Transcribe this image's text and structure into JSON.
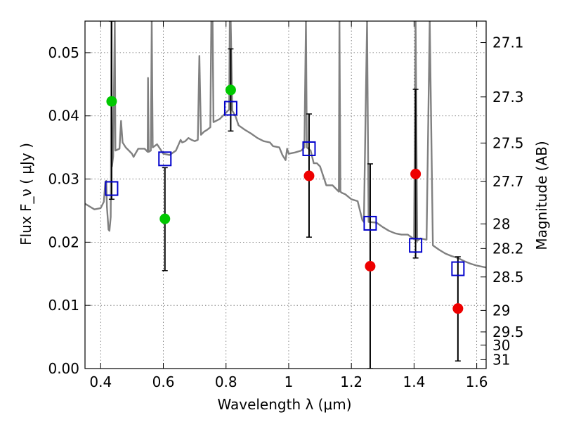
{
  "chart_data": {
    "type": "scatter",
    "xlabel": "Wavelength  λ (μm)",
    "ylabel": "Flux  F_ν  ( μJy )",
    "ylabel_right": "Magnitude (AB)",
    "xlim": [
      0.35,
      1.63
    ],
    "ylim": [
      0.0,
      0.055
    ],
    "grid": true,
    "x_ticks": [
      {
        "value": 0.4,
        "label": "0.4"
      },
      {
        "value": 0.6,
        "label": "0.6"
      },
      {
        "value": 0.8,
        "label": "0.8"
      },
      {
        "value": 1.0,
        "label": "1"
      },
      {
        "value": 1.2,
        "label": "1.2"
      },
      {
        "value": 1.4,
        "label": "1.4"
      },
      {
        "value": 1.6,
        "label": "1.6"
      }
    ],
    "y_ticks": [
      {
        "value": 0.0,
        "label": "0.00"
      },
      {
        "value": 0.01,
        "label": "0.01"
      },
      {
        "value": 0.02,
        "label": "0.02"
      },
      {
        "value": 0.03,
        "label": "0.03"
      },
      {
        "value": 0.04,
        "label": "0.04"
      },
      {
        "value": 0.05,
        "label": "0.05"
      }
    ],
    "y_ticks_right": [
      {
        "flux": 0.0516,
        "label": "27.1"
      },
      {
        "flux": 0.043,
        "label": "27.3"
      },
      {
        "flux": 0.0357,
        "label": "27.5"
      },
      {
        "flux": 0.0296,
        "label": "27.7"
      },
      {
        "flux": 0.0229,
        "label": "28"
      },
      {
        "flux": 0.019,
        "label": "28.2"
      },
      {
        "flux": 0.0145,
        "label": "28.5"
      },
      {
        "flux": 0.0092,
        "label": "29"
      },
      {
        "flux": 0.0058,
        "label": "29.5"
      },
      {
        "flux": 0.0037,
        "label": "30"
      },
      {
        "flux": 0.0014,
        "label": "31"
      }
    ],
    "model_spectrum": {
      "color": "#808080",
      "points": [
        [
          0.35,
          0.0261
        ],
        [
          0.38,
          0.0252
        ],
        [
          0.4,
          0.0254
        ],
        [
          0.41,
          0.0264
        ],
        [
          0.415,
          0.0296
        ],
        [
          0.418,
          0.0297
        ],
        [
          0.42,
          0.0256
        ],
        [
          0.425,
          0.022
        ],
        [
          0.428,
          0.0218
        ],
        [
          0.432,
          0.024
        ],
        [
          0.433,
          0.031
        ],
        [
          0.434,
          0.055
        ],
        [
          0.436,
          0.032
        ],
        [
          0.44,
          0.0336
        ],
        [
          0.445,
          0.055
        ],
        [
          0.447,
          0.0345
        ],
        [
          0.46,
          0.0348
        ],
        [
          0.465,
          0.0392
        ],
        [
          0.47,
          0.0358
        ],
        [
          0.48,
          0.035
        ],
        [
          0.49,
          0.0345
        ],
        [
          0.5,
          0.034
        ],
        [
          0.505,
          0.0335
        ],
        [
          0.52,
          0.0348
        ],
        [
          0.54,
          0.0348
        ],
        [
          0.55,
          0.0343
        ],
        [
          0.551,
          0.046
        ],
        [
          0.553,
          0.0343
        ],
        [
          0.56,
          0.0345
        ],
        [
          0.563,
          0.055
        ],
        [
          0.566,
          0.035
        ],
        [
          0.58,
          0.0355
        ],
        [
          0.6,
          0.034
        ],
        [
          0.62,
          0.0338
        ],
        [
          0.64,
          0.0345
        ],
        [
          0.655,
          0.0362
        ],
        [
          0.66,
          0.0358
        ],
        [
          0.67,
          0.036
        ],
        [
          0.68,
          0.0365
        ],
        [
          0.69,
          0.0362
        ],
        [
          0.7,
          0.036
        ],
        [
          0.71,
          0.0362
        ],
        [
          0.715,
          0.0495
        ],
        [
          0.72,
          0.037
        ],
        [
          0.73,
          0.0375
        ],
        [
          0.74,
          0.0378
        ],
        [
          0.75,
          0.0382
        ],
        [
          0.753,
          0.055
        ],
        [
          0.757,
          0.055
        ],
        [
          0.76,
          0.039
        ],
        [
          0.78,
          0.0395
        ],
        [
          0.79,
          0.04
        ],
        [
          0.8,
          0.0405
        ],
        [
          0.81,
          0.041
        ],
        [
          0.812,
          0.055
        ],
        [
          0.815,
          0.055
        ],
        [
          0.82,
          0.0408
        ],
        [
          0.83,
          0.04
        ],
        [
          0.84,
          0.0385
        ],
        [
          0.86,
          0.0378
        ],
        [
          0.88,
          0.0372
        ],
        [
          0.9,
          0.0365
        ],
        [
          0.92,
          0.036
        ],
        [
          0.94,
          0.0358
        ],
        [
          0.95,
          0.0352
        ],
        [
          0.97,
          0.035
        ],
        [
          0.98,
          0.0338
        ],
        [
          0.99,
          0.033
        ],
        [
          0.995,
          0.0348
        ],
        [
          1.0,
          0.034
        ],
        [
          1.02,
          0.0342
        ],
        [
          1.04,
          0.0345
        ],
        [
          1.05,
          0.035
        ],
        [
          1.055,
          0.055
        ],
        [
          1.058,
          0.035
        ],
        [
          1.07,
          0.0345
        ],
        [
          1.08,
          0.0325
        ],
        [
          1.09,
          0.0325
        ],
        [
          1.1,
          0.032
        ],
        [
          1.12,
          0.029
        ],
        [
          1.14,
          0.029
        ],
        [
          1.16,
          0.028
        ],
        [
          1.162,
          0.055
        ],
        [
          1.165,
          0.028
        ],
        [
          1.17,
          0.0278
        ],
        [
          1.18,
          0.0276
        ],
        [
          1.19,
          0.0272
        ],
        [
          1.2,
          0.0268
        ],
        [
          1.22,
          0.0265
        ],
        [
          1.235,
          0.0235
        ],
        [
          1.24,
          0.0232
        ],
        [
          1.25,
          0.055
        ],
        [
          1.255,
          0.0232
        ],
        [
          1.28,
          0.0231
        ],
        [
          1.3,
          0.0224
        ],
        [
          1.32,
          0.0218
        ],
        [
          1.34,
          0.0214
        ],
        [
          1.36,
          0.0212
        ],
        [
          1.38,
          0.0212
        ],
        [
          1.4,
          0.0205
        ],
        [
          1.405,
          0.055
        ],
        [
          1.41,
          0.0202
        ],
        [
          1.42,
          0.0206
        ],
        [
          1.44,
          0.0204
        ],
        [
          1.45,
          0.055
        ],
        [
          1.46,
          0.0195
        ],
        [
          1.48,
          0.0188
        ],
        [
          1.5,
          0.0182
        ],
        [
          1.52,
          0.0178
        ],
        [
          1.54,
          0.0175
        ],
        [
          1.56,
          0.017
        ],
        [
          1.58,
          0.0166
        ],
        [
          1.6,
          0.0163
        ],
        [
          1.63,
          0.016
        ]
      ]
    },
    "series": [
      {
        "marker": "square-open",
        "color": "#0000cc",
        "x": [
          0.435,
          0.605,
          0.815,
          1.065,
          1.26,
          1.405,
          1.54
        ],
        "y": [
          0.0285,
          0.0332,
          0.0412,
          0.0348,
          0.023,
          0.0195,
          0.0158
        ]
      },
      {
        "marker": "circle-filled",
        "color": "#00c800",
        "x": [
          0.435,
          0.605,
          0.815
        ],
        "y": [
          0.0423,
          0.0237,
          0.0441
        ],
        "error_low": [
          0.0268,
          0.0155,
          0.0376
        ],
        "error_high": [
          0.055,
          0.0318,
          0.0506
        ]
      },
      {
        "marker": "circle-filled",
        "color": "#ee0000",
        "x": [
          1.065,
          1.26,
          1.405,
          1.54
        ],
        "y": [
          0.0305,
          0.0162,
          0.0308,
          0.0095
        ],
        "error_low": [
          0.0208,
          0.0,
          0.0175,
          0.0012
        ],
        "error_high": [
          0.0403,
          0.0324,
          0.0442,
          0.0177
        ]
      }
    ]
  }
}
